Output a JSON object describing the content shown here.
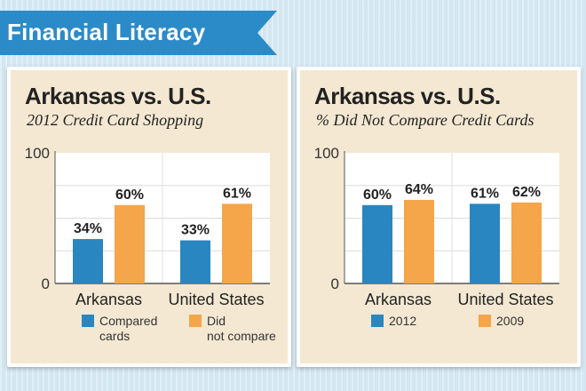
{
  "header": {
    "title": "Financial Literacy"
  },
  "colors": {
    "blue": "#2a86c0",
    "orange": "#f5a54a",
    "banner": "#2b8bc9"
  },
  "chart_data": [
    {
      "type": "bar",
      "title": "Arkansas vs. U.S.",
      "subtitle": "2012 Credit Card Shopping",
      "categories": [
        "Arkansas",
        "United States"
      ],
      "series": [
        {
          "name": "Compared cards",
          "values": [
            34,
            33
          ],
          "labels": [
            "34%",
            "33%"
          ],
          "color": "#2a86c0"
        },
        {
          "name": "Did not compare",
          "values": [
            60,
            61
          ],
          "labels": [
            "60%",
            "61%"
          ],
          "color": "#f5a54a"
        }
      ],
      "ylim": [
        0,
        100
      ],
      "yticks": [
        "0",
        "100"
      ],
      "legend": [
        "Compared cards",
        "Did not compare"
      ],
      "legend_position": "bottom"
    },
    {
      "type": "bar",
      "title": "Arkansas vs. U.S.",
      "subtitle": "% Did Not Compare Credit Cards",
      "categories": [
        "Arkansas",
        "United States"
      ],
      "series": [
        {
          "name": "2012",
          "values": [
            60,
            61
          ],
          "labels": [
            "60%",
            "61%"
          ],
          "color": "#2a86c0"
        },
        {
          "name": "2009",
          "values": [
            64,
            62
          ],
          "labels": [
            "64%",
            "62%"
          ],
          "color": "#f5a54a"
        }
      ],
      "ylim": [
        0,
        100
      ],
      "yticks": [
        "0",
        "100"
      ],
      "legend": [
        "2012",
        "2009"
      ],
      "legend_position": "bottom"
    }
  ]
}
